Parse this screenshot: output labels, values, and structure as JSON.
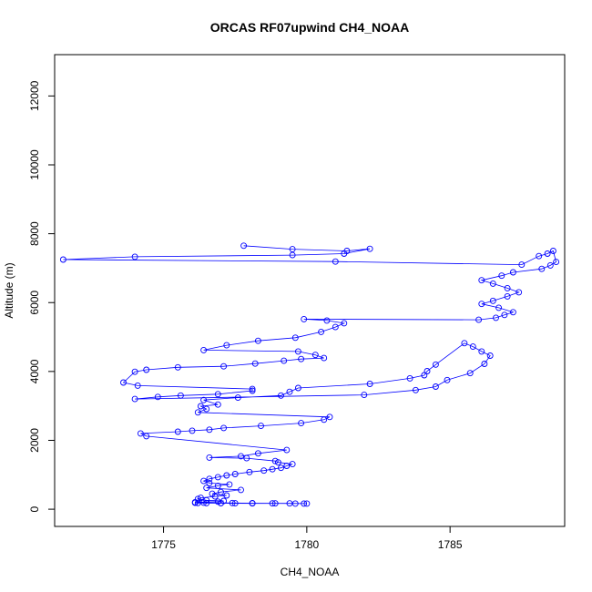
{
  "chart_data": {
    "type": "line",
    "title": "ORCAS RF07upwind CH4_NOAA",
    "xlabel": "CH4_NOAA",
    "ylabel": "Altitude (m)",
    "xlim": [
      1771.2,
      1789.0
    ],
    "ylim": [
      -500,
      13200
    ],
    "x_ticks": [
      1775,
      1780,
      1785
    ],
    "y_ticks": [
      0,
      2000,
      4000,
      6000,
      8000,
      10000,
      12000
    ],
    "grid": false,
    "legend": "none",
    "series_color": "#0000ff",
    "marker": "open-circle",
    "series": [
      {
        "x": [
          1777.8,
          1779.5,
          1781.4,
          1782.2,
          1781.3,
          1779.5,
          1774.0,
          1771.5,
          1781.0,
          1787.5,
          1788.1,
          1788.4,
          1788.6,
          1788.7,
          1788.5,
          1788.2,
          1787.2,
          1786.8,
          1786.1,
          1786.5,
          1787.0,
          1787.4,
          1787.0,
          1786.5,
          1786.1,
          1786.7,
          1787.2,
          1786.9,
          1786.6,
          1786.0,
          1779.9,
          1780.7,
          1781.3,
          1781.0,
          1780.5,
          1779.6,
          1778.3,
          1777.2,
          1776.4,
          1779.7,
          1780.3,
          1780.6,
          1779.8,
          1779.2,
          1778.2,
          1777.1,
          1775.5,
          1774.4,
          1774.0,
          1773.6,
          1774.1,
          1778.1,
          1778.1,
          1776.9,
          1775.6,
          1774.8,
          1774.0,
          1782.0,
          1783.8,
          1784.5,
          1784.9,
          1785.7,
          1786.2,
          1786.4,
          1786.1,
          1785.8,
          1785.5,
          1784.5,
          1784.2,
          1784.1,
          1783.6,
          1782.2,
          1779.7,
          1779.4,
          1779.1,
          1777.6,
          1776.4,
          1776.9,
          1776.3,
          1776.5,
          1776.2,
          1780.8,
          1780.6,
          1779.8,
          1778.4,
          1777.1,
          1776.6,
          1776.0,
          1775.5,
          1774.2,
          1774.4,
          1779.3,
          1778.3,
          1777.7,
          1776.6,
          1777.9,
          1778.9,
          1779.0,
          1779.5,
          1779.3,
          1779.1,
          1778.8,
          1778.5,
          1778.0,
          1777.5,
          1777.2,
          1776.9,
          1776.6,
          1776.4,
          1776.6,
          1777.3,
          1776.9,
          1776.5,
          1777.7,
          1777.0,
          1776.7,
          1777.2,
          1776.8,
          1776.3,
          1776.2,
          1776.5,
          1777.1,
          1776.9,
          1776.1,
          1776.4,
          1777.4,
          1778.1,
          1778.8,
          1779.4,
          1779.9,
          1780.0,
          1779.6,
          1778.9,
          1778.1,
          1777.5,
          1777.0,
          1776.5,
          1776.2,
          1776.1
        ],
        "y": [
          7650,
          7550,
          7500,
          7560,
          7420,
          7380,
          7330,
          7250,
          7190,
          7100,
          7350,
          7420,
          7500,
          7180,
          7080,
          6980,
          6880,
          6780,
          6650,
          6550,
          6420,
          6300,
          6180,
          6050,
          5960,
          5850,
          5720,
          5640,
          5560,
          5500,
          5520,
          5480,
          5400,
          5290,
          5150,
          4980,
          4890,
          4760,
          4620,
          4580,
          4480,
          4390,
          4360,
          4310,
          4230,
          4150,
          4120,
          4050,
          3990,
          3680,
          3590,
          3490,
          3440,
          3340,
          3300,
          3260,
          3200,
          3320,
          3460,
          3560,
          3750,
          3950,
          4220,
          4460,
          4580,
          4720,
          4820,
          4200,
          4010,
          3890,
          3800,
          3640,
          3520,
          3410,
          3300,
          3240,
          3170,
          3040,
          2990,
          2910,
          2810,
          2680,
          2600,
          2500,
          2420,
          2360,
          2310,
          2280,
          2250,
          2200,
          2120,
          1720,
          1620,
          1540,
          1500,
          1480,
          1400,
          1360,
          1310,
          1260,
          1200,
          1160,
          1120,
          1080,
          1020,
          980,
          930,
          880,
          820,
          760,
          720,
          680,
          620,
          560,
          500,
          450,
          400,
          370,
          330,
          300,
          260,
          240,
          220,
          200,
          190,
          180,
          175,
          170,
          168,
          165,
          165,
          165,
          168,
          170,
          172,
          175,
          178,
          180,
          185
        ]
      }
    ]
  }
}
